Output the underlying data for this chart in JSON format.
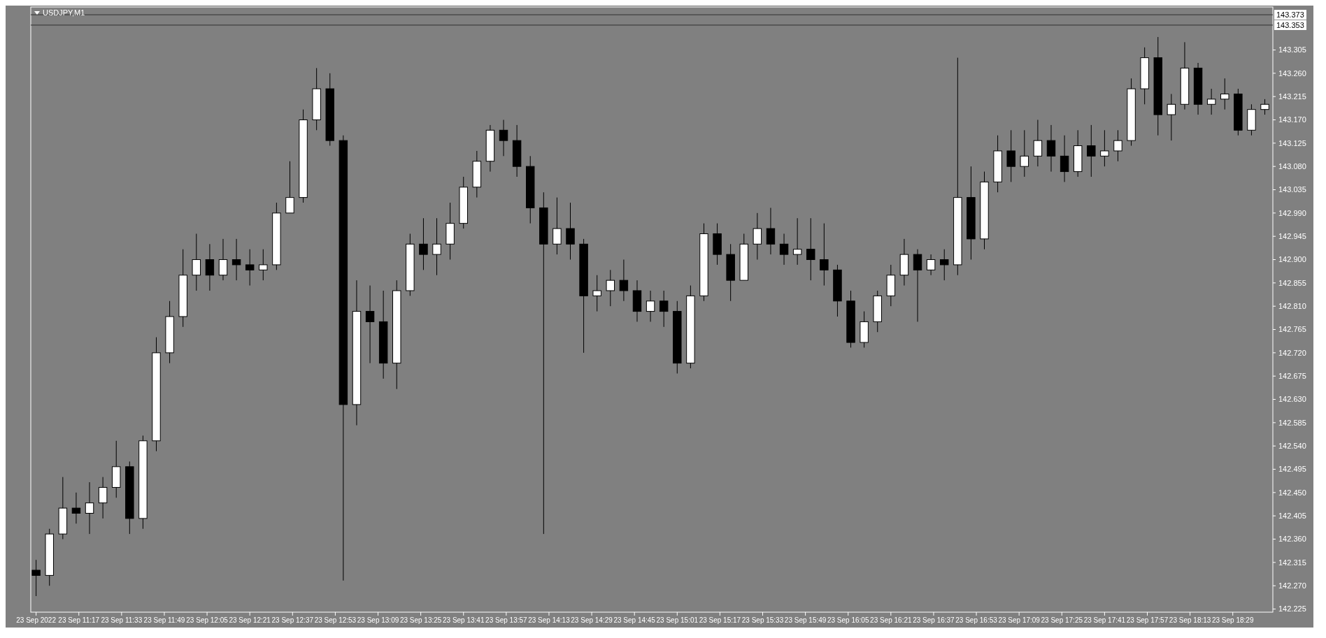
{
  "chart_data": {
    "type": "candlestick",
    "title": "USDJPY,M1",
    "color": "#000000",
    "x": [
      "2022-09-23T11:01",
      "2022-09-23T11:06",
      "2022-09-23T11:11",
      "2022-09-23T11:16",
      "2022-09-23T11:21",
      "2022-09-23T11:26",
      "2022-09-23T11:31",
      "2022-09-23T11:36",
      "2022-09-23T11:41",
      "2022-09-23T11:46",
      "2022-09-23T11:51",
      "2022-09-23T11:56",
      "2022-09-23T12:01",
      "2022-09-23T12:06",
      "2022-09-23T12:11",
      "2022-09-23T12:16",
      "2022-09-23T12:21",
      "2022-09-23T12:26",
      "2022-09-23T12:31",
      "2022-09-23T12:36",
      "2022-09-23T12:41",
      "2022-09-23T12:46",
      "2022-09-23T12:51",
      "2022-09-23T12:56",
      "2022-09-23T13:01",
      "2022-09-23T13:06",
      "2022-09-23T13:11",
      "2022-09-23T13:16",
      "2022-09-23T13:21",
      "2022-09-23T13:26",
      "2022-09-23T13:31",
      "2022-09-23T13:36",
      "2022-09-23T13:41",
      "2022-09-23T13:46",
      "2022-09-23T13:51",
      "2022-09-23T13:56",
      "2022-09-23T14:01",
      "2022-09-23T14:06",
      "2022-09-23T14:11",
      "2022-09-23T14:16",
      "2022-09-23T14:21",
      "2022-09-23T14:26",
      "2022-09-23T14:31",
      "2022-09-23T14:36",
      "2022-09-23T14:41",
      "2022-09-23T14:46",
      "2022-09-23T14:51",
      "2022-09-23T14:56",
      "2022-09-23T15:01",
      "2022-09-23T15:06",
      "2022-09-23T15:11",
      "2022-09-23T15:16",
      "2022-09-23T15:21",
      "2022-09-23T15:26",
      "2022-09-23T15:31",
      "2022-09-23T15:36",
      "2022-09-23T15:41",
      "2022-09-23T15:46",
      "2022-09-23T15:51",
      "2022-09-23T15:56",
      "2022-09-23T16:01",
      "2022-09-23T16:06",
      "2022-09-23T16:11",
      "2022-09-23T16:16",
      "2022-09-23T16:21",
      "2022-09-23T16:26",
      "2022-09-23T16:31",
      "2022-09-23T16:36",
      "2022-09-23T16:41",
      "2022-09-23T16:46",
      "2022-09-23T16:51",
      "2022-09-23T16:56",
      "2022-09-23T17:01",
      "2022-09-23T17:06",
      "2022-09-23T17:11",
      "2022-09-23T17:16",
      "2022-09-23T17:21",
      "2022-09-23T17:26",
      "2022-09-23T17:31",
      "2022-09-23T17:36",
      "2022-09-23T17:41",
      "2022-09-23T17:46",
      "2022-09-23T17:51",
      "2022-09-23T17:56",
      "2022-09-23T18:01",
      "2022-09-23T18:06",
      "2022-09-23T18:11",
      "2022-09-23T18:16",
      "2022-09-23T18:21",
      "2022-09-23T18:26",
      "2022-09-23T18:31",
      "2022-09-23T18:36",
      "2022-09-23T18:41"
    ],
    "ohlc": [
      [
        142.3,
        142.32,
        142.25,
        142.29
      ],
      [
        142.29,
        142.38,
        142.27,
        142.37
      ],
      [
        142.37,
        142.48,
        142.36,
        142.42
      ],
      [
        142.42,
        142.45,
        142.39,
        142.41
      ],
      [
        142.41,
        142.47,
        142.37,
        142.43
      ],
      [
        142.43,
        142.48,
        142.4,
        142.46
      ],
      [
        142.46,
        142.55,
        142.44,
        142.5
      ],
      [
        142.5,
        142.51,
        142.37,
        142.4
      ],
      [
        142.4,
        142.56,
        142.38,
        142.55
      ],
      [
        142.55,
        142.75,
        142.53,
        142.72
      ],
      [
        142.72,
        142.82,
        142.7,
        142.79
      ],
      [
        142.79,
        142.92,
        142.77,
        142.87
      ],
      [
        142.87,
        142.95,
        142.84,
        142.9
      ],
      [
        142.9,
        142.93,
        142.84,
        142.87
      ],
      [
        142.87,
        142.94,
        142.86,
        142.9
      ],
      [
        142.9,
        142.94,
        142.86,
        142.89
      ],
      [
        142.89,
        142.92,
        142.85,
        142.88
      ],
      [
        142.88,
        142.92,
        142.86,
        142.89
      ],
      [
        142.89,
        143.01,
        142.88,
        142.99
      ],
      [
        142.99,
        143.09,
        142.99,
        143.02
      ],
      [
        143.02,
        143.19,
        143.01,
        143.17
      ],
      [
        143.17,
        143.27,
        143.15,
        143.23
      ],
      [
        143.23,
        143.26,
        143.12,
        143.13
      ],
      [
        143.13,
        143.14,
        142.28,
        142.62
      ],
      [
        142.62,
        142.86,
        142.58,
        142.8
      ],
      [
        142.8,
        142.85,
        142.7,
        142.78
      ],
      [
        142.78,
        142.84,
        142.67,
        142.7
      ],
      [
        142.7,
        142.86,
        142.65,
        142.84
      ],
      [
        142.84,
        142.95,
        142.83,
        142.93
      ],
      [
        142.93,
        142.98,
        142.88,
        142.91
      ],
      [
        142.91,
        142.98,
        142.87,
        142.93
      ],
      [
        142.93,
        143.01,
        142.9,
        142.97
      ],
      [
        142.97,
        143.06,
        142.96,
        143.04
      ],
      [
        143.04,
        143.11,
        143.02,
        143.09
      ],
      [
        143.09,
        143.16,
        143.07,
        143.15
      ],
      [
        143.15,
        143.17,
        143.1,
        143.13
      ],
      [
        143.13,
        143.16,
        143.06,
        143.08
      ],
      [
        143.08,
        143.1,
        142.97,
        143.0
      ],
      [
        143.0,
        143.03,
        142.37,
        142.93
      ],
      [
        142.93,
        143.02,
        142.91,
        142.96
      ],
      [
        142.96,
        143.01,
        142.9,
        142.93
      ],
      [
        142.93,
        142.94,
        142.72,
        142.83
      ],
      [
        142.83,
        142.87,
        142.8,
        142.84
      ],
      [
        142.84,
        142.88,
        142.81,
        142.86
      ],
      [
        142.86,
        142.9,
        142.82,
        142.84
      ],
      [
        142.84,
        142.86,
        142.78,
        142.8
      ],
      [
        142.8,
        142.84,
        142.78,
        142.82
      ],
      [
        142.82,
        142.84,
        142.77,
        142.8
      ],
      [
        142.8,
        142.82,
        142.68,
        142.7
      ],
      [
        142.7,
        142.85,
        142.69,
        142.83
      ],
      [
        142.83,
        142.97,
        142.82,
        142.95
      ],
      [
        142.95,
        142.97,
        142.89,
        142.91
      ],
      [
        142.91,
        142.93,
        142.82,
        142.86
      ],
      [
        142.86,
        142.95,
        142.86,
        142.93
      ],
      [
        142.93,
        142.99,
        142.9,
        142.96
      ],
      [
        142.96,
        143.0,
        142.91,
        142.93
      ],
      [
        142.93,
        142.95,
        142.89,
        142.91
      ],
      [
        142.91,
        142.98,
        142.89,
        142.92
      ],
      [
        142.92,
        142.98,
        142.86,
        142.9
      ],
      [
        142.9,
        142.97,
        142.85,
        142.88
      ],
      [
        142.88,
        142.89,
        142.79,
        142.82
      ],
      [
        142.82,
        142.84,
        142.73,
        142.74
      ],
      [
        142.74,
        142.8,
        142.73,
        142.78
      ],
      [
        142.78,
        142.84,
        142.76,
        142.83
      ],
      [
        142.83,
        142.89,
        142.81,
        142.87
      ],
      [
        142.87,
        142.94,
        142.85,
        142.91
      ],
      [
        142.91,
        142.92,
        142.78,
        142.88
      ],
      [
        142.88,
        142.91,
        142.87,
        142.9
      ],
      [
        142.9,
        142.92,
        142.86,
        142.89
      ],
      [
        142.89,
        143.29,
        142.87,
        143.02
      ],
      [
        143.02,
        143.08,
        142.9,
        142.94
      ],
      [
        142.94,
        143.07,
        142.92,
        143.05
      ],
      [
        143.05,
        143.14,
        143.03,
        143.11
      ],
      [
        143.11,
        143.15,
        143.05,
        143.08
      ],
      [
        143.08,
        143.15,
        143.06,
        143.1
      ],
      [
        143.1,
        143.17,
        143.08,
        143.13
      ],
      [
        143.13,
        143.16,
        143.07,
        143.1
      ],
      [
        143.1,
        143.14,
        143.05,
        143.07
      ],
      [
        143.07,
        143.15,
        143.06,
        143.12
      ],
      [
        143.12,
        143.16,
        143.06,
        143.1
      ],
      [
        143.1,
        143.15,
        143.08,
        143.11
      ],
      [
        143.11,
        143.15,
        143.09,
        143.13
      ],
      [
        143.13,
        143.25,
        143.12,
        143.23
      ],
      [
        143.23,
        143.31,
        143.2,
        143.29
      ],
      [
        143.29,
        143.33,
        143.14,
        143.18
      ],
      [
        143.18,
        143.22,
        143.13,
        143.2
      ],
      [
        143.2,
        143.32,
        143.19,
        143.27
      ],
      [
        143.27,
        143.28,
        143.18,
        143.2
      ],
      [
        143.2,
        143.23,
        143.18,
        143.21
      ],
      [
        143.21,
        143.25,
        143.19,
        143.22
      ],
      [
        143.22,
        143.23,
        143.14,
        143.15
      ],
      [
        143.15,
        143.2,
        143.14,
        143.19
      ],
      [
        143.19,
        143.21,
        143.18,
        143.2
      ]
    ],
    "xlim": [
      "2022-09-23T10:59",
      "2022-09-23T18:44"
    ],
    "xticks": [
      {
        "value": "2022-09-23T11:01",
        "label": "23 Sep 2022"
      },
      {
        "value": "2022-09-23T11:17",
        "label": "23 Sep 11:17"
      },
      {
        "value": "2022-09-23T11:33",
        "label": "23 Sep 11:33"
      },
      {
        "value": "2022-09-23T11:49",
        "label": "23 Sep 11:49"
      },
      {
        "value": "2022-09-23T12:05",
        "label": "23 Sep 12:05"
      },
      {
        "value": "2022-09-23T12:21",
        "label": "23 Sep 12:21"
      },
      {
        "value": "2022-09-23T12:37",
        "label": "23 Sep 12:37"
      },
      {
        "value": "2022-09-23T12:53",
        "label": "23 Sep 12:53"
      },
      {
        "value": "2022-09-23T13:09",
        "label": "23 Sep 13:09"
      },
      {
        "value": "2022-09-23T13:25",
        "label": "23 Sep 13:25"
      },
      {
        "value": "2022-09-23T13:41",
        "label": "23 Sep 13:41"
      },
      {
        "value": "2022-09-23T13:57",
        "label": "23 Sep 13:57"
      },
      {
        "value": "2022-09-23T14:13",
        "label": "23 Sep 14:13"
      },
      {
        "value": "2022-09-23T14:29",
        "label": "23 Sep 14:29"
      },
      {
        "value": "2022-09-23T14:45",
        "label": "23 Sep 14:45"
      },
      {
        "value": "2022-09-23T15:01",
        "label": "23 Sep 15:01"
      },
      {
        "value": "2022-09-23T15:17",
        "label": "23 Sep 15:17"
      },
      {
        "value": "2022-09-23T15:33",
        "label": "23 Sep 15:33"
      },
      {
        "value": "2022-09-23T15:49",
        "label": "23 Sep 15:49"
      },
      {
        "value": "2022-09-23T16:05",
        "label": "23 Sep 16:05"
      },
      {
        "value": "2022-09-23T16:21",
        "label": "23 Sep 16:21"
      },
      {
        "value": "2022-09-23T16:37",
        "label": "23 Sep 16:37"
      },
      {
        "value": "2022-09-23T16:53",
        "label": "23 Sep 16:53"
      },
      {
        "value": "2022-09-23T17:09",
        "label": "23 Sep 17:09"
      },
      {
        "value": "2022-09-23T17:25",
        "label": "23 Sep 17:25"
      },
      {
        "value": "2022-09-23T17:41",
        "label": "23 Sep 17:41"
      },
      {
        "value": "2022-09-23T17:57",
        "label": "23 Sep 17:57"
      },
      {
        "value": "2022-09-23T18:13",
        "label": "23 Sep 18:13"
      },
      {
        "value": "2022-09-23T18:29",
        "label": "23 Sep 18:29"
      }
    ],
    "ylim": [
      142.219,
      143.388
    ],
    "yticks": [
      142.225,
      {
        "value": 142.27,
        "label": "142.270"
      },
      142.315,
      {
        "value": 142.36,
        "label": "142.360"
      },
      142.405,
      {
        "value": 142.45,
        "label": "142.450"
      },
      142.495,
      {
        "value": 142.54,
        "label": "142.540"
      },
      142.585,
      {
        "value": 142.63,
        "label": "142.630"
      },
      142.675,
      {
        "value": 142.72,
        "label": "142.720"
      },
      142.765,
      {
        "value": 142.81,
        "label": "142.810"
      },
      142.855,
      {
        "value": 142.9,
        "label": "142.900"
      },
      142.945,
      {
        "value": 142.99,
        "label": "142.990"
      },
      143.035,
      {
        "value": 143.08,
        "label": "143.080"
      },
      143.125,
      {
        "value": 143.17,
        "label": "143.170"
      },
      143.215,
      {
        "value": 143.26,
        "label": "143.260"
      },
      143.305
    ],
    "ref_lines": [
      {
        "axis": "y",
        "value": 143.373,
        "label": "143.373"
      },
      {
        "axis": "y",
        "value": 143.353,
        "label": "143.353"
      }
    ]
  }
}
